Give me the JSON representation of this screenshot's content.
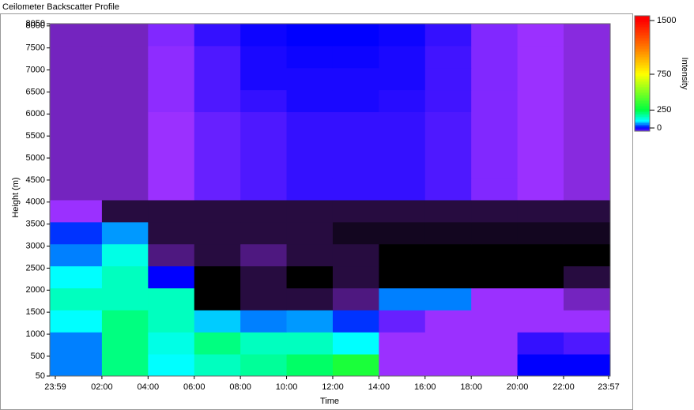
{
  "chart_data": {
    "type": "heatmap",
    "title": "Ceilometer Backscatter Profile",
    "x_label": "Time",
    "y_label": "Height (m)",
    "colorbar_label": "Intensity",
    "xlim": [
      -0.257,
      24.02
    ],
    "xticks": [
      {
        "value": -0.017,
        "label": "23:59"
      },
      {
        "value": 2,
        "label": "02:00"
      },
      {
        "value": 4,
        "label": "04:00"
      },
      {
        "value": 6,
        "label": "06:00"
      },
      {
        "value": 8,
        "label": "08:00"
      },
      {
        "value": 10,
        "label": "10:00"
      },
      {
        "value": 12,
        "label": "12:00"
      },
      {
        "value": 14,
        "label": "14:00"
      },
      {
        "value": 16,
        "label": "16:00"
      },
      {
        "value": 18,
        "label": "18:00"
      },
      {
        "value": 20,
        "label": "20:00"
      },
      {
        "value": 22,
        "label": "22:00"
      },
      {
        "value": 23.95,
        "label": "23:57"
      }
    ],
    "ylim": [
      50,
      8050
    ],
    "yticks": [
      50,
      500,
      1000,
      1500,
      2000,
      2500,
      3000,
      3500,
      4000,
      4500,
      5000,
      5500,
      6000,
      6500,
      7000,
      7500,
      8000,
      8050
    ],
    "clim": [
      -44,
      1566
    ],
    "cticks": [
      0,
      250,
      750,
      1500
    ],
    "colorscale": [
      [
        -100,
        "#000000"
      ],
      [
        -60,
        "#9b30ff"
      ],
      [
        0,
        "#0000ff"
      ],
      [
        100,
        "#00ffff"
      ],
      [
        250,
        "#00ff40"
      ],
      [
        750,
        "#ffff00"
      ],
      [
        1100,
        "#ff8000"
      ],
      [
        1500,
        "#ff0000"
      ]
    ],
    "xbins": [
      -0.257,
      2,
      4,
      6,
      8,
      10,
      12,
      14,
      16,
      18,
      20,
      22,
      24.02
    ],
    "ybins": [
      50,
      550,
      1050,
      1550,
      2050,
      2550,
      3050,
      3550,
      4050,
      4550,
      5050,
      5550,
      6050,
      6550,
      7050,
      7550,
      8050
    ],
    "z": [
      [
        50,
        200,
        100,
        150,
        180,
        220,
        300,
        -60,
        -60,
        -60,
        0,
        0
      ],
      [
        50,
        200,
        120,
        200,
        150,
        150,
        100,
        -60,
        -60,
        -60,
        -20,
        -30
      ],
      [
        100,
        200,
        150,
        80,
        50,
        60,
        20,
        -40,
        -60,
        -60,
        -60,
        -60
      ],
      [
        150,
        150,
        150,
        -100,
        -90,
        -90,
        -80,
        50,
        50,
        -60,
        -60,
        -70
      ],
      [
        100,
        150,
        0,
        -100,
        -90,
        -100,
        -90,
        -100,
        -100,
        -100,
        -100,
        -90
      ],
      [
        50,
        120,
        -80,
        -90,
        -80,
        -90,
        -90,
        -100,
        -100,
        -100,
        -100,
        -100
      ],
      [
        20,
        60,
        -90,
        -90,
        -90,
        -90,
        -95,
        -95,
        -95,
        -95,
        -95,
        -95
      ],
      [
        -60,
        -90,
        -90,
        -90,
        -90,
        -90,
        -90,
        -90,
        -90,
        -90,
        -90,
        -90
      ],
      [
        -70,
        -70,
        -60,
        -40,
        -30,
        -20,
        -20,
        -20,
        -30,
        -50,
        -60,
        -65
      ],
      [
        -70,
        -70,
        -60,
        -40,
        -30,
        -20,
        -20,
        -20,
        -30,
        -50,
        -60,
        -65
      ],
      [
        -70,
        -70,
        -60,
        -40,
        -30,
        -20,
        -20,
        -20,
        -30,
        -50,
        -60,
        -65
      ],
      [
        -70,
        -70,
        -60,
        -40,
        -30,
        -20,
        -20,
        -20,
        -30,
        -50,
        -60,
        -65
      ],
      [
        -70,
        -70,
        -55,
        -30,
        -20,
        -10,
        -10,
        -15,
        -25,
        -50,
        -60,
        -65
      ],
      [
        -70,
        -70,
        -55,
        -30,
        -10,
        -10,
        -10,
        -10,
        -25,
        -50,
        -60,
        -65
      ],
      [
        -70,
        -70,
        -55,
        -30,
        -10,
        -5,
        -5,
        -10,
        -25,
        -50,
        -60,
        -65
      ],
      [
        -70,
        -70,
        -50,
        -20,
        -5,
        0,
        0,
        -5,
        -20,
        -50,
        -60,
        -65
      ]
    ]
  }
}
